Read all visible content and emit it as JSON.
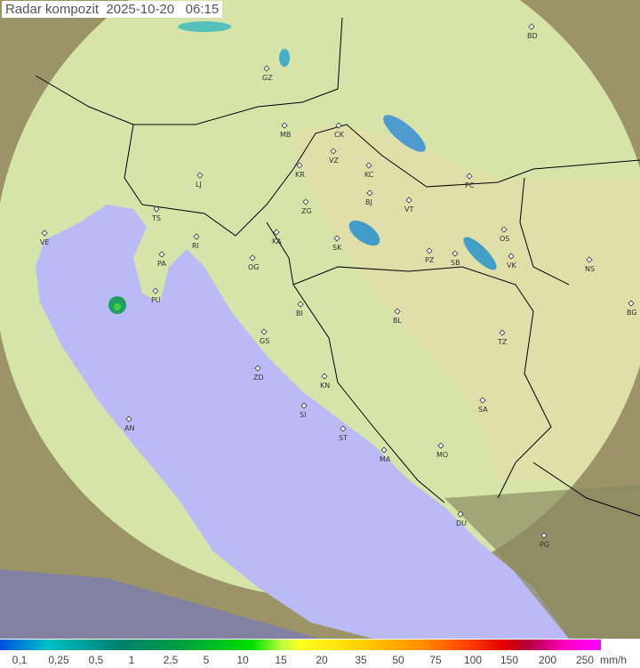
{
  "header": {
    "title": "Radar kompozit",
    "date": "2025-10-20",
    "time": "06:15"
  },
  "legend": {
    "labels": [
      "0,1",
      "0,25",
      "0,5",
      "1",
      "2,5",
      "5",
      "10",
      "15",
      "20",
      "35",
      "50",
      "75",
      "100",
      "150",
      "200",
      "250"
    ],
    "unit": "mm/h"
  },
  "colors": {
    "land": "#d8e6b0",
    "sea": "#b8b8f8",
    "outside": "#8a8a60",
    "outside_sea": "#8080b8",
    "border": "#000000"
  },
  "cities": [
    "BD",
    "GZ",
    "MB",
    "CK",
    "VZ",
    "KR",
    "KC",
    "PC",
    "LJ",
    "TS",
    "ZG",
    "BJ",
    "VT",
    "VE",
    "RI",
    "KA",
    "SK",
    "PZ",
    "SB",
    "OS",
    "VK",
    "NS",
    "PA",
    "OG",
    "PU",
    "BI",
    "BL",
    "BG",
    "TZ",
    "GS",
    "ZD",
    "KN",
    "SA",
    "SI",
    "AN",
    "ST",
    "MA",
    "MO",
    "DU",
    "PG"
  ]
}
